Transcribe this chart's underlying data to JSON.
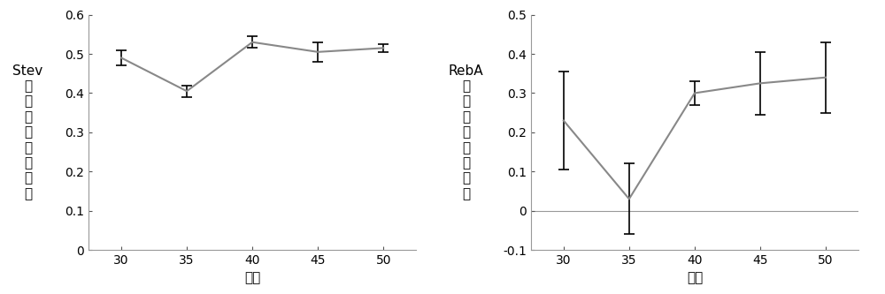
{
  "chart1": {
    "x": [
      30,
      35,
      40,
      45,
      50
    ],
    "y": [
      0.49,
      0.405,
      0.53,
      0.505,
      0.515
    ],
    "yerr": [
      0.02,
      0.015,
      0.015,
      0.025,
      0.01
    ],
    "xlabel": "温度",
    "ylabel_parts": [
      "Stev",
      "峰",
      "面",
      "积",
      "减",
      "少",
      "百",
      "分",
      "比"
    ],
    "ylim": [
      0,
      0.6
    ],
    "yticks": [
      0,
      0.1,
      0.2,
      0.3,
      0.4,
      0.5,
      0.6
    ],
    "xticks": [
      30,
      35,
      40,
      45,
      50
    ]
  },
  "chart2": {
    "x": [
      30,
      35,
      40,
      45,
      50
    ],
    "y": [
      0.23,
      0.03,
      0.3,
      0.325,
      0.34
    ],
    "yerr": [
      0.125,
      0.09,
      0.03,
      0.08,
      0.09
    ],
    "xlabel": "温度",
    "ylabel_parts": [
      "RebA",
      "峰",
      "面",
      "积",
      "减",
      "少",
      "百",
      "分",
      "比"
    ],
    "ylim": [
      -0.1,
      0.5
    ],
    "yticks": [
      -0.1,
      0,
      0.1,
      0.2,
      0.3,
      0.4,
      0.5
    ],
    "xticks": [
      30,
      35,
      40,
      45,
      50
    ]
  },
  "line_color": "#888888",
  "errorbar_color": "#000000",
  "bg_color": "#ffffff",
  "ylabel_fontsize": 11,
  "xlabel_fontsize": 11,
  "tick_fontsize": 10
}
